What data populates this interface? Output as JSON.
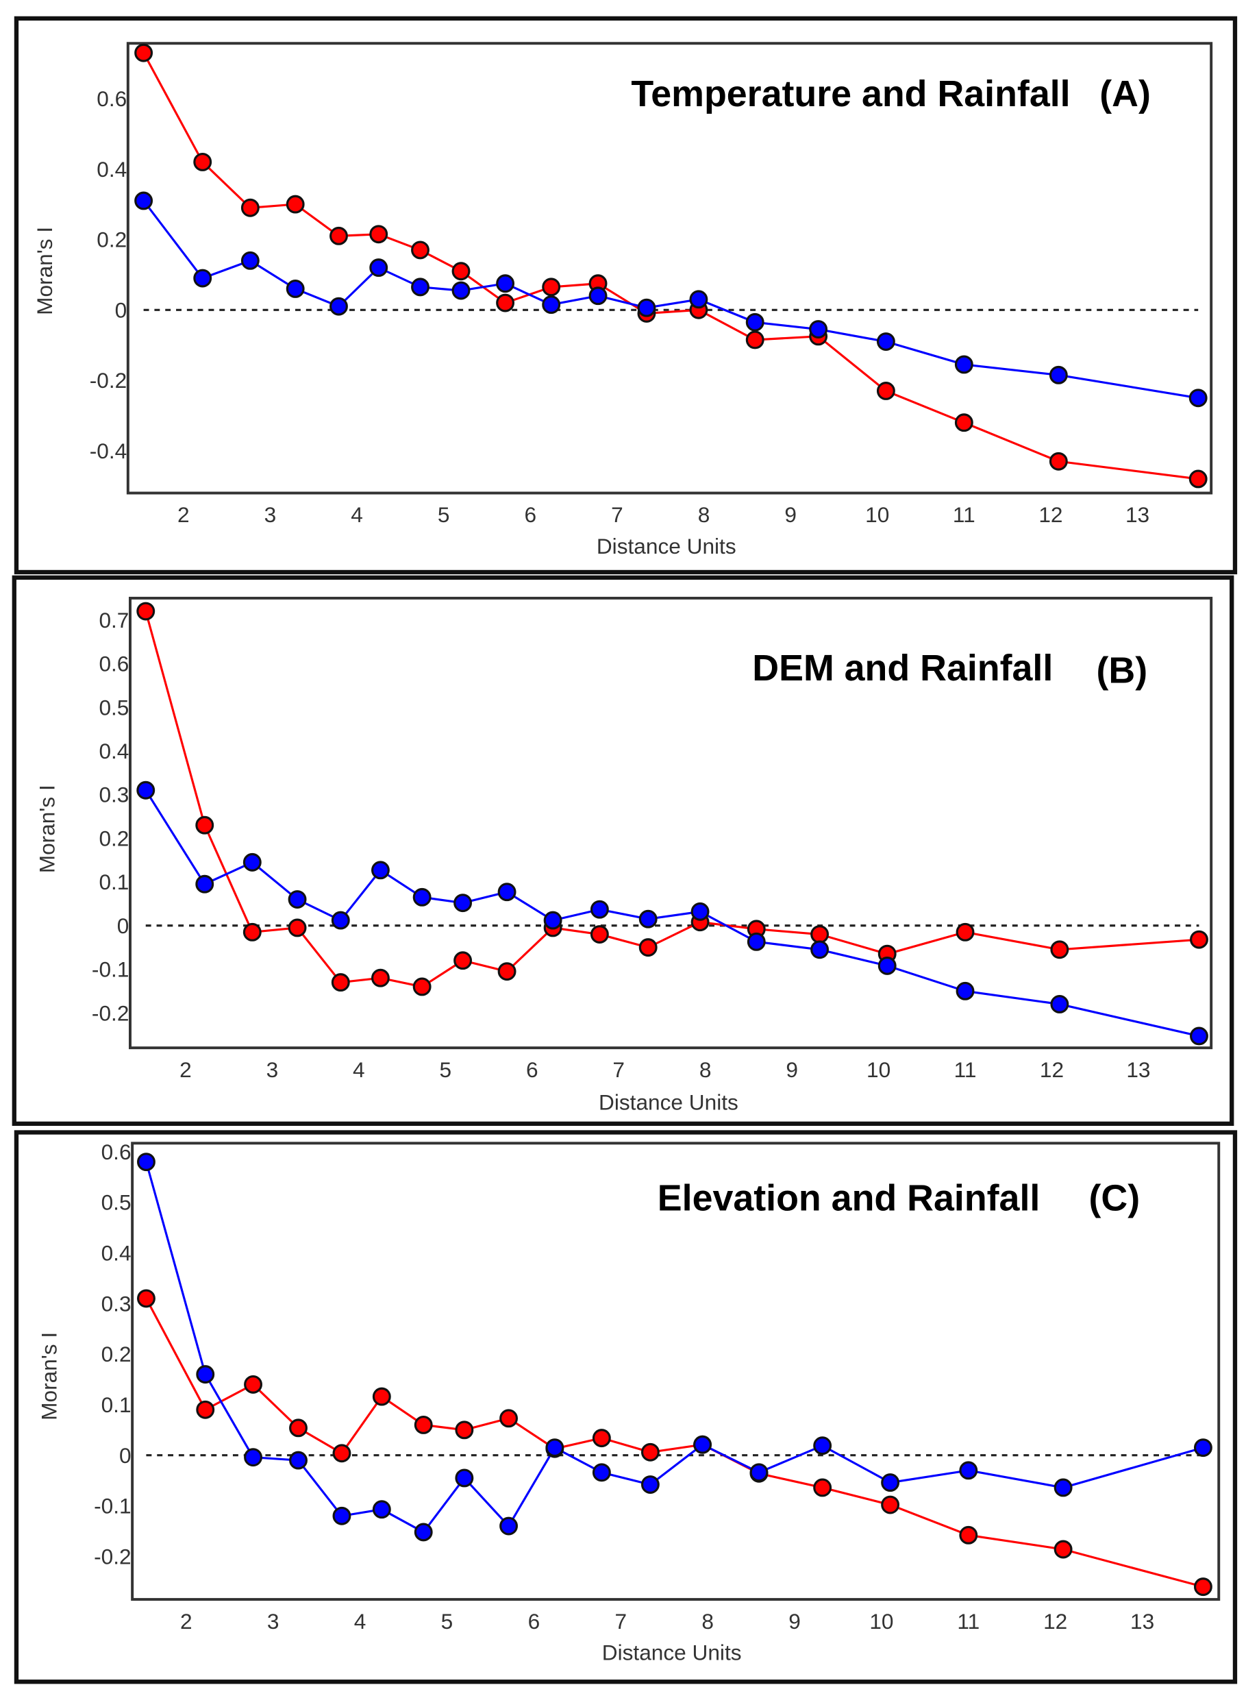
{
  "chart_data": [
    {
      "type": "line",
      "title": "Temperature and Rainfall",
      "panel_label": "(A)",
      "xlabel": "Distance Units",
      "ylabel": "Moran's I",
      "xticks": [
        "2",
        "3",
        "4",
        "5",
        "6",
        "7",
        "8",
        "9",
        "10",
        "11",
        "12",
        "13"
      ],
      "yticks": [
        {
          "v": 0.6,
          "label": "0.6"
        },
        {
          "v": 0.4,
          "label": "0.4"
        },
        {
          "v": 0.2,
          "label": "0.2"
        },
        {
          "v": 0,
          "label": "0"
        },
        {
          "v": -0.2,
          "label": "-0.2"
        },
        {
          "v": -0.4,
          "label": "-0.4"
        }
      ],
      "xlim": [
        1.36,
        13.85
      ],
      "ylim": [
        -0.52,
        0.757
      ],
      "reference_line": 0,
      "x": [
        1.54,
        2.22,
        2.77,
        3.29,
        3.79,
        4.25,
        4.73,
        5.2,
        5.71,
        6.24,
        6.78,
        7.34,
        7.94,
        8.59,
        9.32,
        10.1,
        11.0,
        12.09,
        13.7
      ],
      "series": [
        {
          "color": "#ff0000",
          "values": [
            0.73,
            0.42,
            0.29,
            0.3,
            0.21,
            0.215,
            0.17,
            0.11,
            0.02,
            0.065,
            0.075,
            -0.01,
            0.0,
            -0.085,
            -0.075,
            -0.23,
            -0.32,
            -0.43,
            -0.48
          ]
        },
        {
          "color": "#0000ff",
          "values": [
            0.31,
            0.09,
            0.14,
            0.06,
            0.01,
            0.12,
            0.065,
            0.055,
            0.075,
            0.015,
            0.04,
            0.006,
            0.03,
            -0.035,
            -0.055,
            -0.09,
            -0.155,
            -0.185,
            -0.25
          ]
        }
      ]
    },
    {
      "type": "line",
      "title": "DEM and Rainfall",
      "panel_label": "(B)",
      "xlabel": "Distance Units",
      "ylabel": "Moran's I",
      "xticks": [
        "2",
        "3",
        "4",
        "5",
        "6",
        "7",
        "8",
        "9",
        "10",
        "11",
        "12",
        "13"
      ],
      "yticks": [
        {
          "v": 0.7,
          "label": "0.7"
        },
        {
          "v": 0.6,
          "label": "0.6"
        },
        {
          "v": 0.5,
          "label": "0.5"
        },
        {
          "v": 0.4,
          "label": "0.4"
        },
        {
          "v": 0.3,
          "label": "0.3"
        },
        {
          "v": 0.2,
          "label": "0.2"
        },
        {
          "v": 0.1,
          "label": "0.1"
        },
        {
          "v": 0,
          "label": "0"
        },
        {
          "v": -0.1,
          "label": "-0.1"
        },
        {
          "v": -0.2,
          "label": "-0.2"
        }
      ],
      "xlim": [
        1.36,
        13.84
      ],
      "ylim": [
        -0.28,
        0.75
      ],
      "reference_line": 0,
      "x": [
        1.54,
        2.22,
        2.77,
        3.29,
        3.79,
        4.25,
        4.73,
        5.2,
        5.71,
        6.24,
        6.78,
        7.34,
        7.94,
        8.59,
        9.32,
        10.1,
        11.0,
        12.09,
        13.7
      ],
      "series": [
        {
          "color": "#ff0000",
          "values": [
            0.72,
            0.23,
            -0.015,
            -0.005,
            -0.13,
            -0.12,
            -0.14,
            -0.08,
            -0.105,
            -0.005,
            -0.02,
            -0.05,
            0.008,
            -0.008,
            -0.02,
            -0.065,
            -0.015,
            -0.055,
            -0.032
          ]
        },
        {
          "color": "#0000ff",
          "values": [
            0.31,
            0.095,
            0.145,
            0.06,
            0.012,
            0.127,
            0.065,
            0.052,
            0.077,
            0.012,
            0.037,
            0.015,
            0.032,
            -0.037,
            -0.055,
            -0.092,
            -0.15,
            -0.18,
            -0.253
          ]
        }
      ]
    },
    {
      "type": "line",
      "title": "Elevation and Rainfall",
      "panel_label": "(C)",
      "xlabel": "Distance Units",
      "ylabel": "Moran's I",
      "xticks": [
        "2",
        "3",
        "4",
        "5",
        "6",
        "7",
        "8",
        "9",
        "10",
        "11",
        "12",
        "13"
      ],
      "yticks": [
        {
          "v": 0.6,
          "label": "0.6"
        },
        {
          "v": 0.5,
          "label": "0.5"
        },
        {
          "v": 0.4,
          "label": "0.4"
        },
        {
          "v": 0.3,
          "label": "0.3"
        },
        {
          "v": 0.2,
          "label": "0.2"
        },
        {
          "v": 0.1,
          "label": "0.1"
        },
        {
          "v": 0,
          "label": "0"
        },
        {
          "v": -0.1,
          "label": "-0.1"
        },
        {
          "v": -0.2,
          "label": "-0.2"
        }
      ],
      "xlim": [
        1.38,
        13.88
      ],
      "ylim": [
        -0.285,
        0.617
      ],
      "reference_line": 0,
      "x": [
        1.54,
        2.22,
        2.77,
        3.29,
        3.79,
        4.25,
        4.73,
        5.2,
        5.71,
        6.24,
        6.78,
        7.34,
        7.94,
        8.59,
        9.32,
        10.1,
        11.0,
        12.09,
        13.7
      ],
      "series": [
        {
          "color": "#ff0000",
          "values": [
            0.31,
            0.09,
            0.14,
            0.054,
            0.004,
            0.116,
            0.06,
            0.05,
            0.073,
            0.013,
            0.034,
            0.006,
            0.021,
            -0.036,
            -0.064,
            -0.098,
            -0.158,
            -0.186,
            -0.26
          ]
        },
        {
          "color": "#0000ff",
          "values": [
            0.58,
            0.16,
            -0.004,
            -0.01,
            -0.12,
            -0.107,
            -0.152,
            -0.045,
            -0.14,
            0.015,
            -0.034,
            -0.058,
            0.021,
            -0.034,
            0.019,
            -0.054,
            -0.03,
            -0.064,
            0.015
          ]
        }
      ]
    }
  ]
}
